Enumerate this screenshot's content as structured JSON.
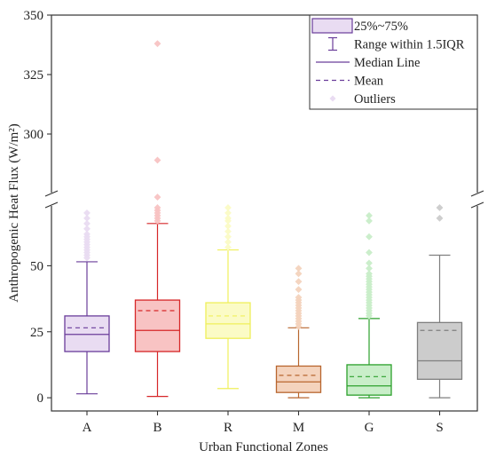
{
  "chart_data": {
    "type": "box",
    "xlabel": "Urban Functional Zones",
    "ylabel": "Anthropogenic Heat Flux (W/m²)",
    "categories": [
      "A",
      "B",
      "R",
      "M",
      "G",
      "S"
    ],
    "y_axis": {
      "broken": true,
      "lower_segment": {
        "range": [
          -5,
          73
        ],
        "ticks": [
          0,
          25,
          50
        ]
      },
      "upper_segment": {
        "range": [
          275,
          350
        ],
        "ticks": [
          300,
          325,
          350
        ]
      }
    },
    "grid": false,
    "legend": {
      "placement": "top-right",
      "items": [
        {
          "symbol": "box",
          "label": "25%~75%"
        },
        {
          "symbol": "whisker",
          "label": "Range within 1.5IQR"
        },
        {
          "symbol": "solid-line",
          "label": "Median Line"
        },
        {
          "symbol": "dashed-line",
          "label": "Mean"
        },
        {
          "symbol": "dot",
          "label": "Outliers"
        }
      ]
    },
    "series": [
      {
        "category": "A",
        "color": "#6a3d9a",
        "fill": "#e9dcf2",
        "whisker_low": 1.5,
        "q1": 17.5,
        "median": 24,
        "mean": 26.5,
        "q3": 31,
        "whisker_high": 51.5,
        "outliers": [
          53,
          54,
          55,
          56,
          57,
          58,
          59,
          60,
          61,
          62,
          64,
          66,
          68,
          70
        ]
      },
      {
        "category": "B",
        "color": "#d62728",
        "fill": "#f8c3c3",
        "whisker_low": 0.5,
        "q1": 17.5,
        "median": 25.5,
        "mean": 33,
        "q3": 37,
        "whisker_high": 66,
        "outliers": [
          67,
          68,
          69,
          70,
          71,
          72,
          76,
          289,
          338
        ]
      },
      {
        "category": "R",
        "color": "#efef5a",
        "fill": "#fbfbc6",
        "whisker_low": 3.5,
        "q1": 22.5,
        "median": 28,
        "mean": 31,
        "q3": 36,
        "whisker_high": 56,
        "outliers": [
          57,
          59,
          61,
          63,
          65,
          67,
          68,
          70,
          72
        ]
      },
      {
        "category": "M",
        "color": "#b8662f",
        "fill": "#f4d3bd",
        "whisker_low": 0,
        "q1": 2,
        "median": 6,
        "mean": 8.5,
        "q3": 12,
        "whisker_high": 26.5,
        "outliers": [
          27,
          28,
          29,
          30,
          31,
          32,
          33,
          34,
          35,
          36,
          37,
          38,
          41,
          44,
          47,
          49
        ]
      },
      {
        "category": "G",
        "color": "#2ca02c",
        "fill": "#c9eec9",
        "whisker_low": 0,
        "q1": 1,
        "median": 4.5,
        "mean": 8,
        "q3": 12.5,
        "whisker_high": 30,
        "outliers": [
          31,
          32,
          33,
          34,
          35,
          36,
          37,
          38,
          39,
          40,
          41,
          42,
          43,
          44,
          45,
          46,
          47,
          49,
          51,
          55,
          61,
          67,
          69
        ]
      },
      {
        "category": "S",
        "color": "#7f7f7f",
        "fill": "#cccccc",
        "whisker_low": 0,
        "q1": 7,
        "median": 14,
        "mean": 25.5,
        "q3": 28.5,
        "whisker_high": 54,
        "outliers": [
          68,
          72
        ]
      }
    ]
  }
}
